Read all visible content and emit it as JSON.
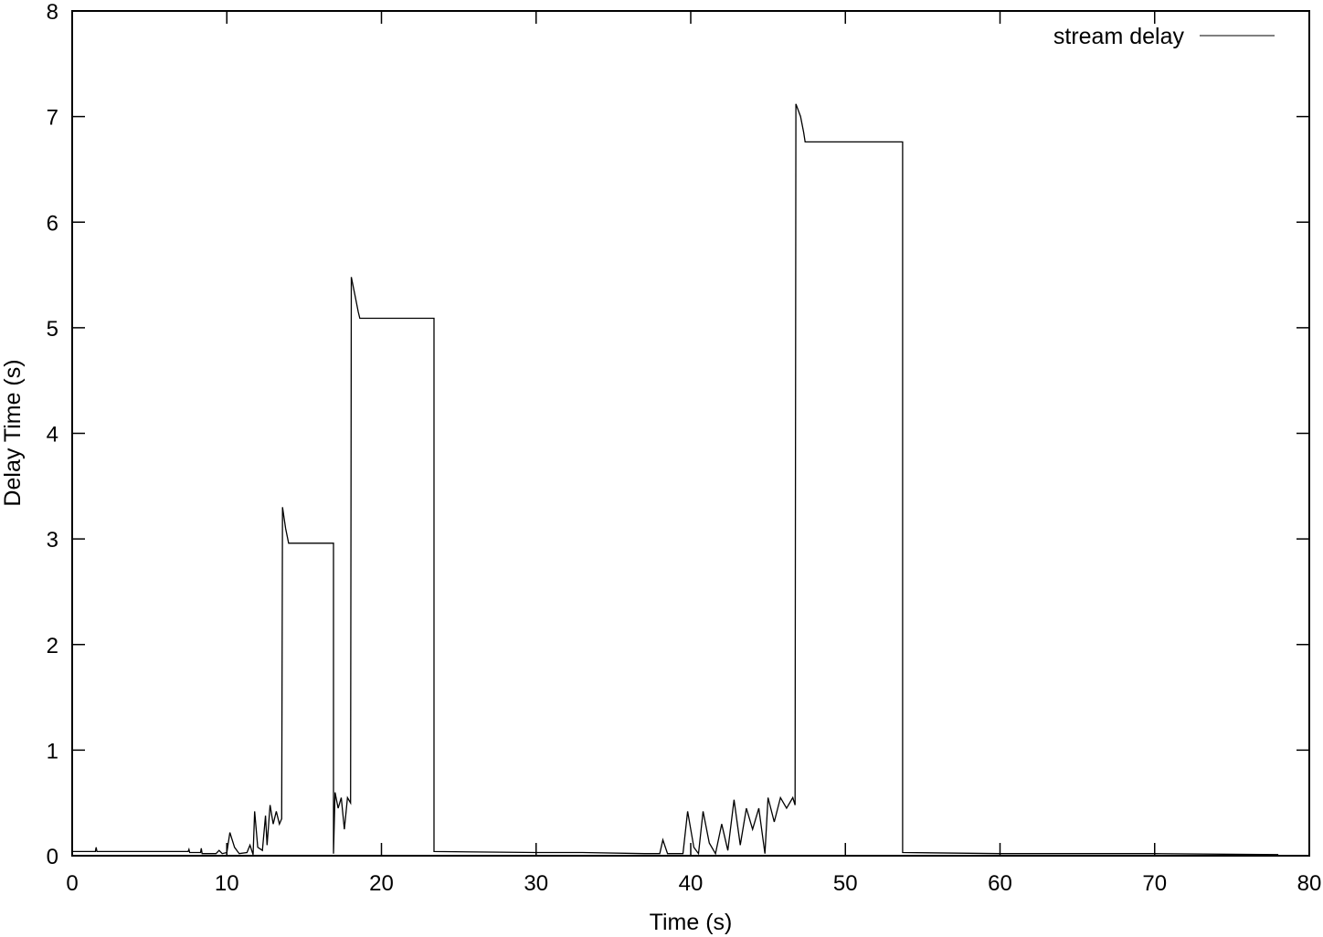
{
  "chart_data": {
    "type": "line",
    "title": "",
    "xlabel": "Time (s)",
    "ylabel": "Delay Time (s)",
    "xlim": [
      0,
      80
    ],
    "ylim": [
      0,
      8
    ],
    "xticks": [
      0,
      10,
      20,
      30,
      40,
      50,
      60,
      70,
      80
    ],
    "yticks": [
      0,
      1,
      2,
      3,
      4,
      5,
      6,
      7,
      8
    ],
    "grid": false,
    "legend_position": "top-right",
    "series": [
      {
        "name": "stream delay",
        "color": "#000000",
        "points": [
          [
            0,
            0.04
          ],
          [
            1.5,
            0.04
          ],
          [
            1.55,
            0.08
          ],
          [
            1.6,
            0.04
          ],
          [
            7.5,
            0.04
          ],
          [
            7.55,
            0.06
          ],
          [
            7.6,
            0.03
          ],
          [
            8.3,
            0.03
          ],
          [
            8.35,
            0.07
          ],
          [
            8.4,
            0.02
          ],
          [
            9.3,
            0.02
          ],
          [
            9.5,
            0.05
          ],
          [
            9.7,
            0.02
          ],
          [
            10.0,
            0.03
          ],
          [
            10.2,
            0.22
          ],
          [
            10.5,
            0.08
          ],
          [
            10.8,
            0.02
          ],
          [
            11.3,
            0.03
          ],
          [
            11.5,
            0.1
          ],
          [
            11.7,
            0.01
          ],
          [
            11.8,
            0.42
          ],
          [
            12.0,
            0.08
          ],
          [
            12.3,
            0.05
          ],
          [
            12.5,
            0.38
          ],
          [
            12.6,
            0.1
          ],
          [
            12.8,
            0.48
          ],
          [
            13.0,
            0.3
          ],
          [
            13.2,
            0.42
          ],
          [
            13.4,
            0.3
          ],
          [
            13.55,
            0.35
          ],
          [
            13.6,
            3.3
          ],
          [
            13.8,
            3.1
          ],
          [
            14.0,
            2.96
          ],
          [
            16.9,
            2.96
          ],
          [
            16.9,
            0.02
          ],
          [
            17.0,
            0.6
          ],
          [
            17.2,
            0.45
          ],
          [
            17.4,
            0.55
          ],
          [
            17.6,
            0.25
          ],
          [
            17.8,
            0.55
          ],
          [
            18.0,
            0.5
          ],
          [
            18.05,
            5.48
          ],
          [
            18.3,
            5.3
          ],
          [
            18.5,
            5.15
          ],
          [
            18.6,
            5.09
          ],
          [
            23.4,
            5.09
          ],
          [
            23.4,
            0.04
          ],
          [
            30.0,
            0.03
          ],
          [
            33.0,
            0.03
          ],
          [
            37.0,
            0.02
          ],
          [
            38.0,
            0.02
          ],
          [
            38.2,
            0.15
          ],
          [
            38.5,
            0.02
          ],
          [
            39.5,
            0.02
          ],
          [
            39.8,
            0.42
          ],
          [
            40.2,
            0.08
          ],
          [
            40.5,
            0.02
          ],
          [
            40.8,
            0.42
          ],
          [
            41.2,
            0.12
          ],
          [
            41.6,
            0.02
          ],
          [
            42.0,
            0.3
          ],
          [
            42.4,
            0.05
          ],
          [
            42.8,
            0.53
          ],
          [
            43.2,
            0.1
          ],
          [
            43.6,
            0.45
          ],
          [
            44.0,
            0.25
          ],
          [
            44.4,
            0.45
          ],
          [
            44.8,
            0.02
          ],
          [
            45.0,
            0.55
          ],
          [
            45.4,
            0.32
          ],
          [
            45.8,
            0.55
          ],
          [
            46.2,
            0.45
          ],
          [
            46.6,
            0.55
          ],
          [
            46.75,
            0.48
          ],
          [
            46.8,
            7.12
          ],
          [
            47.1,
            7.0
          ],
          [
            47.3,
            6.85
          ],
          [
            47.4,
            6.76
          ],
          [
            53.7,
            6.76
          ],
          [
            53.7,
            0.03
          ],
          [
            60.0,
            0.02
          ],
          [
            70.0,
            0.02
          ],
          [
            78.0,
            0.01
          ]
        ]
      }
    ]
  }
}
